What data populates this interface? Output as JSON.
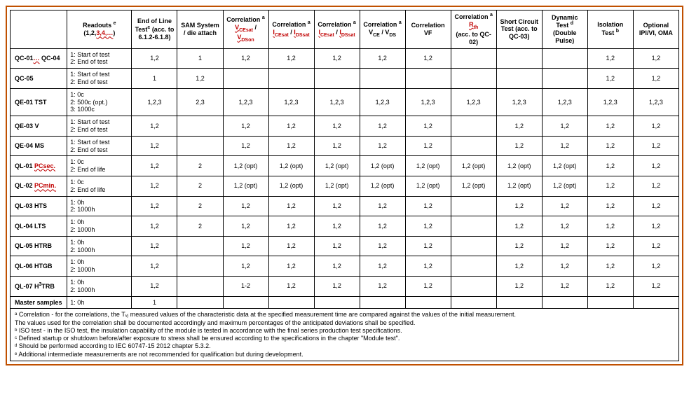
{
  "headers": {
    "blank": "",
    "readouts": "Readouts ᵉ\n(1,2,3,4,…)",
    "eol": "End of Line Testᶜ (acc. to 6.1.2-6.1.8)",
    "sam": "SAM System / die attach",
    "corr_vce": "Correlation ᵃ VCEsat / VDSon",
    "corr_ices1": "Correlation ᵃ ICEsat / IDSsat",
    "corr_ices2": "Correlation ᵃ ICEsat / IDSsat",
    "corr_vce_vds": "Correlation ᵃ VCE / VDS",
    "corr_vf": "Correlation VF",
    "corr_rth": "Correlation ᵃ Rth (acc. to QC-02)",
    "short": "Short Circuit Test (acc. to QC-03)",
    "dynamic": "Dynamic Test ᵈ (Double Pulse)",
    "isolation": "Isolation Test ᵇ",
    "optional": "Optional IPI/VI, OMA"
  },
  "rows": [
    {
      "label": "QC-01… QC-04",
      "readout": "1: Start of test\n2: End of test",
      "cells": [
        "1,2",
        "1",
        "1,2",
        "1,2",
        "1,2",
        "1,2",
        "1,2",
        "",
        "",
        "",
        "1,2",
        "1,2"
      ]
    },
    {
      "label": "QC-05",
      "readout": "1: Start of test\n2: End of test",
      "cells": [
        "1",
        "1,2",
        "",
        "",
        "",
        "",
        "",
        "",
        "",
        "",
        "1,2",
        "1,2"
      ]
    },
    {
      "label": "QE-01 TST",
      "readout": "1: 0c\n2: 500c (opt.)\n3: 1000c",
      "cells": [
        "1,2,3",
        "2,3",
        "1,2,3",
        "1,2,3",
        "1,2,3",
        "1,2,3",
        "1,2,3",
        "1,2,3",
        "1,2,3",
        "1,2,3",
        "1,2,3",
        "1,2,3"
      ]
    },
    {
      "label": "QE-03 V",
      "readout": "1: Start of test\n2: End of test",
      "cells": [
        "1,2",
        "",
        "1,2",
        "1,2",
        "1,2",
        "1,2",
        "1,2",
        "",
        "1,2",
        "1,2",
        "1,2",
        "1,2"
      ]
    },
    {
      "label": "QE-04 MS",
      "readout": "1: Start of test\n2: End of test",
      "cells": [
        "1,2",
        "",
        "1,2",
        "1,2",
        "1,2",
        "1,2",
        "1,2",
        "",
        "1,2",
        "1,2",
        "1,2",
        "1,2"
      ]
    },
    {
      "label": "QL-01 PCsec",
      "readout": "1: 0c\n2: End of life",
      "cells": [
        "1,2",
        "2",
        "1,2 (opt)",
        "1,2 (opt)",
        "1,2 (opt)",
        "1,2 (opt)",
        "1,2 (opt)",
        "1,2 (opt)",
        "1,2 (opt)",
        "1,2 (opt)",
        "1,2",
        "1,2"
      ]
    },
    {
      "label": "QL-02 PCmin",
      "readout": "1: 0c\n2: End of life",
      "cells": [
        "1,2",
        "2",
        "1,2 (opt)",
        "1,2 (opt)",
        "1,2 (opt)",
        "1,2 (opt)",
        "1,2 (opt)",
        "1,2 (opt)",
        "1,2 (opt)",
        "1,2 (opt)",
        "1,2",
        "1,2"
      ]
    },
    {
      "label": "QL-03 HTS",
      "readout": "1: 0h\n2: 1000h",
      "cells": [
        "1,2",
        "2",
        "1,2",
        "1,2",
        "1,2",
        "1,2",
        "1,2",
        "",
        "1,2",
        "1,2",
        "1,2",
        "1,2"
      ]
    },
    {
      "label": "QL-04 LTS",
      "readout": "1: 0h\n2: 1000h",
      "cells": [
        "1,2",
        "2",
        "1,2",
        "1,2",
        "1,2",
        "1,2",
        "1,2",
        "",
        "1,2",
        "1,2",
        "1,2",
        "1,2"
      ]
    },
    {
      "label": "QL-05 HTRB",
      "readout": "1: 0h\n2: 1000h",
      "cells": [
        "1,2",
        "",
        "1,2",
        "1,2",
        "1,2",
        "1,2",
        "1,2",
        "",
        "1,2",
        "1,2",
        "1,2",
        "1,2"
      ]
    },
    {
      "label": "QL-06 HTGB",
      "readout": "1: 0h\n2: 1000h",
      "cells": [
        "1,2",
        "",
        "1,2",
        "1,2",
        "1,2",
        "1,2",
        "1,2",
        "",
        "1,2",
        "1,2",
        "1,2",
        "1,2"
      ]
    },
    {
      "label": "QL-07 H³TRB",
      "readout": "1: 0h\n2: 1000h",
      "cells": [
        "1,2",
        "",
        "1-2",
        "1,2",
        "1,2",
        "1,2",
        "1,2",
        "",
        "1,2",
        "1,2",
        "1,2",
        "1,2"
      ]
    }
  ],
  "master": {
    "label": "Master samples",
    "readout": "1: 0h",
    "cells": [
      "1",
      "",
      "",
      "",
      "",
      "",
      "",
      "",
      "",
      "",
      "",
      ""
    ]
  },
  "footnotes": [
    "ᵃ Correlation - for the correlations, the Tᵥⱼ measured values of the characteristic data at the specified measurement time are compared against the values of the initial measurement.",
    "   The values used for the correlation shall be documented accordingly and maximum percentages of the anticipated deviations shall be specified.",
    "ᵇ ISO test - in the ISO test, the insulation capability of the module is tested in accordance with the final series production test specifications.",
    "ᶜ Defined startup or shutdown before/after exposure to stress shall be ensured according to the specifications in the chapter \"Module test\".",
    "ᵈ Should be performed according to IEC 60747-15 2012 chapter 5.3.2.",
    "ᵉ Additional intermediate measurements are not recommended for qualification but during development."
  ]
}
